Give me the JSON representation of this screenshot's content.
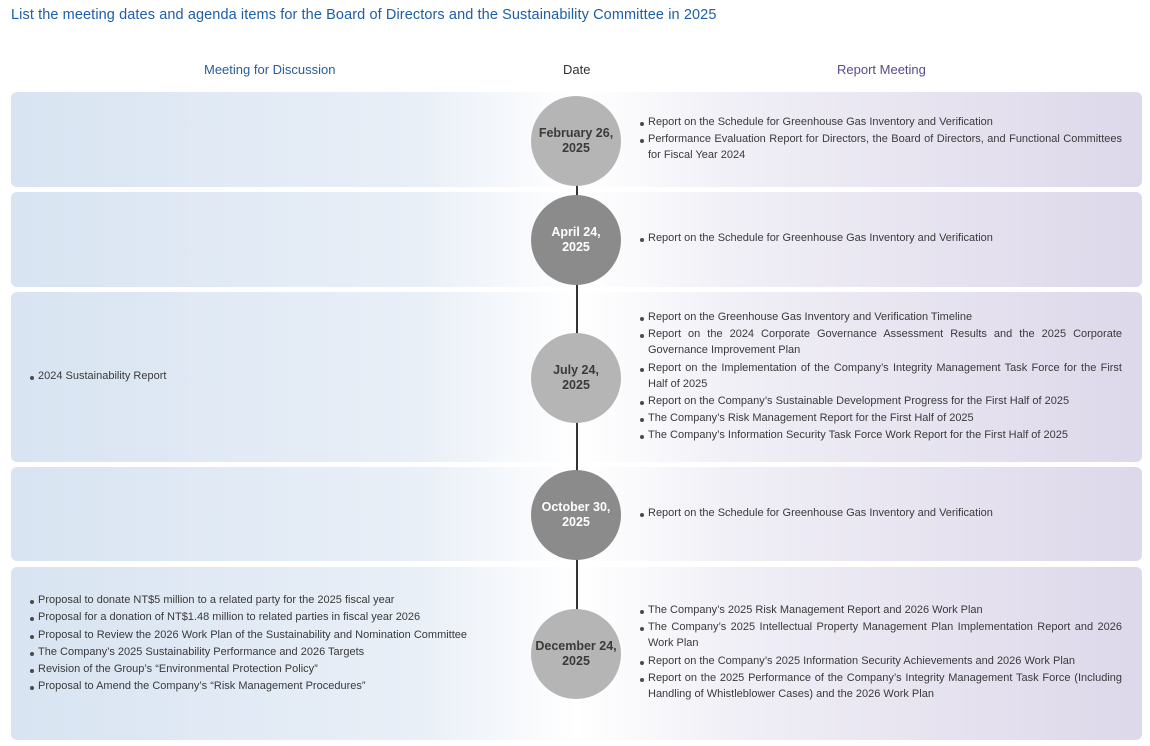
{
  "title": "List the meeting dates and agenda items for the Board of Directors and the Sustainability Committee in 2025",
  "headers": {
    "discussion": "Meeting for Discussion",
    "date": "Date",
    "report": "Report Meeting"
  },
  "meetings": [
    {
      "date_line1": "February 26,",
      "date_line2": "2025",
      "discussion": [],
      "report": [
        "Report on the Schedule for Greenhouse Gas Inventory and Verification",
        "Performance Evaluation Report for Directors, the Board of Directors, and Functional Committees for Fiscal Year 2024"
      ]
    },
    {
      "date_line1": "April 24,",
      "date_line2": "2025",
      "discussion": [],
      "report": [
        "Report on the Schedule for Greenhouse Gas Inventory and Verification"
      ]
    },
    {
      "date_line1": "July 24,",
      "date_line2": "2025",
      "discussion": [
        "2024 Sustainability Report"
      ],
      "report": [
        "Report on the Greenhouse Gas Inventory and Verification Timeline",
        "Report on the 2024 Corporate Governance Assessment Results and the 2025 Corporate Governance Improvement Plan",
        "Report on the Implementation of the Company’s Integrity Management Task Force for the First Half of 2025",
        "Report on the Company’s Sustainable Development Progress for the First Half of 2025",
        "The Company’s Risk Management Report for the First Half of 2025",
        "The Company’s Information Security Task Force Work Report for the First Half of 2025"
      ]
    },
    {
      "date_line1": "October 30,",
      "date_line2": "2025",
      "discussion": [],
      "report": [
        "Report on the Schedule for Greenhouse Gas Inventory and Verification"
      ]
    },
    {
      "date_line1": "December 24,",
      "date_line2": "2025",
      "discussion": [
        "Proposal to donate NT$5 million to a related party for the 2025 fiscal year",
        "Proposal for a donation of NT$1.48 million to related parties in fiscal year 2026",
        "Proposal to Review the 2026 Work Plan of the Sustainability and Nomination Committee",
        "The Company’s 2025 Sustainability Performance and 2026 Targets",
        "Revision of the Group’s “Environmental Protection Policy”",
        "Proposal to Amend the Company’s “Risk Management Procedures”"
      ],
      "report": [
        "The Company’s 2025 Risk Management Report and 2026 Work Plan",
        "The Company’s 2025 Intellectual Property Management Plan Implementation Report and 2026 Work Plan",
        "Report on the Company’s 2025 Information Security Achievements and 2026 Work Plan",
        "Report on the 2025 Performance of the Company’s Integrity Management Task Force (Including Handling of Whistleblower Cases) and the 2026 Work Plan"
      ]
    }
  ]
}
